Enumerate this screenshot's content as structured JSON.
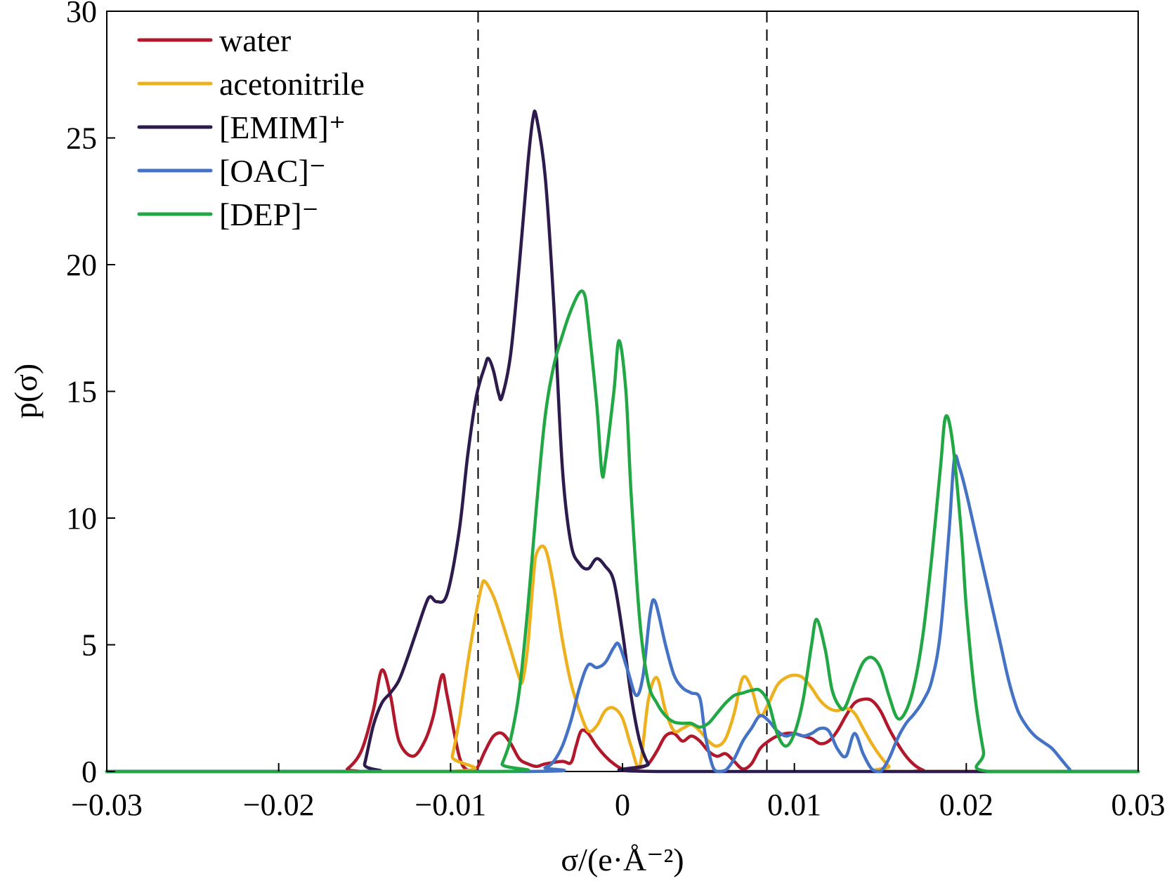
{
  "chart_data": {
    "type": "line",
    "title": "",
    "xlabel": "σ/(e·Å⁻²)",
    "ylabel": "p(σ)",
    "xlim": [
      -0.03,
      0.03
    ],
    "ylim": [
      0,
      30
    ],
    "x_ticks": [
      "−0.03",
      "−0.02",
      "−0.01",
      "0",
      "0.01",
      "0.02",
      "0.03"
    ],
    "y_ticks": [
      "0",
      "5",
      "10",
      "15",
      "20",
      "25",
      "30"
    ],
    "grid": false,
    "legend_position": "top-left",
    "reference_lines_x": [
      -0.0084,
      0.0084
    ],
    "series": [
      {
        "name": "water",
        "color": "#b2182b",
        "points": [
          [
            -0.03,
            0
          ],
          [
            -0.0165,
            0
          ],
          [
            -0.016,
            0.1
          ],
          [
            -0.0152,
            0.8
          ],
          [
            -0.0145,
            2.4
          ],
          [
            -0.014,
            4.0
          ],
          [
            -0.0135,
            3.0
          ],
          [
            -0.013,
            1.2
          ],
          [
            -0.0122,
            0.6
          ],
          [
            -0.0115,
            1.2
          ],
          [
            -0.011,
            2.2
          ],
          [
            -0.0105,
            3.8
          ],
          [
            -0.0102,
            3.0
          ],
          [
            -0.0095,
            0.6
          ],
          [
            -0.009,
            0.05
          ],
          [
            -0.0085,
            0.1
          ],
          [
            -0.008,
            0.8
          ],
          [
            -0.0075,
            1.4
          ],
          [
            -0.007,
            1.5
          ],
          [
            -0.0065,
            1.1
          ],
          [
            -0.006,
            0.5
          ],
          [
            -0.0055,
            0.3
          ],
          [
            -0.005,
            0.2
          ],
          [
            -0.0045,
            0.3
          ],
          [
            -0.0035,
            0.4
          ],
          [
            -0.003,
            0.35
          ],
          [
            -0.0027,
            1.0
          ],
          [
            -0.0024,
            1.6
          ],
          [
            -0.002,
            1.5
          ],
          [
            -0.0015,
            1.0
          ],
          [
            -0.001,
            0.6
          ],
          [
            -0.0005,
            0.3
          ],
          [
            0,
            0.1
          ],
          [
            0.0005,
            0.1
          ],
          [
            0.001,
            0.15
          ],
          [
            0.0015,
            0.3
          ],
          [
            0.002,
            0.8
          ],
          [
            0.0025,
            1.4
          ],
          [
            0.003,
            1.5
          ],
          [
            0.0035,
            1.2
          ],
          [
            0.004,
            1.4
          ],
          [
            0.0045,
            1.2
          ],
          [
            0.005,
            0.8
          ],
          [
            0.0055,
            0.6
          ],
          [
            0.006,
            0.7
          ],
          [
            0.0065,
            0.4
          ],
          [
            0.007,
            0.1
          ],
          [
            0.0075,
            0.3
          ],
          [
            0.008,
            0.9
          ],
          [
            0.0085,
            1.2
          ],
          [
            0.009,
            1.4
          ],
          [
            0.0095,
            1.5
          ],
          [
            0.01,
            1.5
          ],
          [
            0.0105,
            1.4
          ],
          [
            0.011,
            1.3
          ],
          [
            0.0115,
            1.1
          ],
          [
            0.012,
            1.2
          ],
          [
            0.0125,
            1.6
          ],
          [
            0.013,
            2.2
          ],
          [
            0.0135,
            2.7
          ],
          [
            0.014,
            2.85
          ],
          [
            0.0145,
            2.8
          ],
          [
            0.015,
            2.4
          ],
          [
            0.0155,
            1.7
          ],
          [
            0.016,
            1.1
          ],
          [
            0.0165,
            0.6
          ],
          [
            0.017,
            0.25
          ],
          [
            0.0175,
            0.05
          ],
          [
            0.018,
            0
          ],
          [
            0.03,
            0
          ]
        ]
      },
      {
        "name": "acetonitrile",
        "color": "#edb120",
        "points": [
          [
            -0.03,
            0
          ],
          [
            -0.0101,
            0
          ],
          [
            -0.0099,
            0.6
          ],
          [
            -0.0095,
            2.0
          ],
          [
            -0.009,
            4.3
          ],
          [
            -0.0085,
            6.3
          ],
          [
            -0.0082,
            7.3
          ],
          [
            -0.008,
            7.5
          ],
          [
            -0.0075,
            6.9
          ],
          [
            -0.007,
            5.9
          ],
          [
            -0.0065,
            4.8
          ],
          [
            -0.006,
            3.7
          ],
          [
            -0.0058,
            3.6
          ],
          [
            -0.0055,
            5.0
          ],
          [
            -0.0052,
            7.5
          ],
          [
            -0.005,
            8.6
          ],
          [
            -0.0045,
            8.8
          ],
          [
            -0.004,
            7.3
          ],
          [
            -0.0035,
            5.2
          ],
          [
            -0.003,
            3.5
          ],
          [
            -0.0025,
            2.4
          ],
          [
            -0.002,
            1.6
          ],
          [
            -0.0015,
            1.8
          ],
          [
            -0.001,
            2.4
          ],
          [
            -0.0005,
            2.5
          ],
          [
            0,
            2.1
          ],
          [
            0.0005,
            1.0
          ],
          [
            0.001,
            0.2
          ],
          [
            0.0015,
            2.8
          ],
          [
            0.002,
            3.7
          ],
          [
            0.0025,
            2.4
          ],
          [
            0.003,
            1.6
          ],
          [
            0.0035,
            1.7
          ],
          [
            0.004,
            1.85
          ],
          [
            0.0045,
            1.6
          ],
          [
            0.005,
            1.2
          ],
          [
            0.0055,
            1.0
          ],
          [
            0.006,
            1.3
          ],
          [
            0.0065,
            2.3
          ],
          [
            0.007,
            3.7
          ],
          [
            0.0075,
            3.3
          ],
          [
            0.008,
            2.2
          ],
          [
            0.0085,
            2.7
          ],
          [
            0.009,
            3.4
          ],
          [
            0.0095,
            3.7
          ],
          [
            0.01,
            3.8
          ],
          [
            0.0105,
            3.7
          ],
          [
            0.011,
            3.3
          ],
          [
            0.0115,
            2.8
          ],
          [
            0.012,
            2.5
          ],
          [
            0.0125,
            2.4
          ],
          [
            0.013,
            2.5
          ],
          [
            0.0135,
            2.3
          ],
          [
            0.014,
            1.7
          ],
          [
            0.0145,
            1.1
          ],
          [
            0.015,
            0.6
          ],
          [
            0.0155,
            0.2
          ],
          [
            0.0158,
            0
          ],
          [
            0.03,
            0
          ]
        ]
      },
      {
        "name": "[EMIM]⁺",
        "color": "#2d1b4e",
        "points": [
          [
            -0.03,
            0
          ],
          [
            -0.0152,
            0
          ],
          [
            -0.015,
            0.3
          ],
          [
            -0.0145,
            1.8
          ],
          [
            -0.014,
            2.7
          ],
          [
            -0.0135,
            3.1
          ],
          [
            -0.013,
            3.6
          ],
          [
            -0.0125,
            4.5
          ],
          [
            -0.012,
            5.5
          ],
          [
            -0.0115,
            6.5
          ],
          [
            -0.0112,
            6.9
          ],
          [
            -0.0108,
            6.7
          ],
          [
            -0.0102,
            7.0
          ],
          [
            -0.0095,
            9.5
          ],
          [
            -0.009,
            12.5
          ],
          [
            -0.0085,
            14.8
          ],
          [
            -0.008,
            16.0
          ],
          [
            -0.0078,
            16.3
          ],
          [
            -0.0075,
            15.8
          ],
          [
            -0.0072,
            14.9
          ],
          [
            -0.007,
            14.8
          ],
          [
            -0.0065,
            16.5
          ],
          [
            -0.006,
            20.0
          ],
          [
            -0.0055,
            24.0
          ],
          [
            -0.0052,
            25.8
          ],
          [
            -0.005,
            25.8
          ],
          [
            -0.0045,
            23.5
          ],
          [
            -0.004,
            18.5
          ],
          [
            -0.0035,
            12.0
          ],
          [
            -0.003,
            9.0
          ],
          [
            -0.0025,
            8.2
          ],
          [
            -0.002,
            8.0
          ],
          [
            -0.0015,
            8.4
          ],
          [
            -0.001,
            8.1
          ],
          [
            -0.0005,
            7.5
          ],
          [
            0,
            5.5
          ],
          [
            0.0005,
            3.0
          ],
          [
            0.001,
            1.2
          ],
          [
            0.0015,
            0.3
          ],
          [
            0.002,
            0
          ],
          [
            0.03,
            0
          ]
        ]
      },
      {
        "name": "[OAC]⁻",
        "color": "#4472c4",
        "points": [
          [
            -0.03,
            0
          ],
          [
            -0.0055,
            0
          ],
          [
            -0.0045,
            0.15
          ],
          [
            -0.004,
            0.4
          ],
          [
            -0.0035,
            1.0
          ],
          [
            -0.003,
            2.0
          ],
          [
            -0.0025,
            3.3
          ],
          [
            -0.002,
            4.2
          ],
          [
            -0.0015,
            4.1
          ],
          [
            -0.001,
            4.3
          ],
          [
            -0.0005,
            4.9
          ],
          [
            -0.0002,
            5.0
          ],
          [
            0.0003,
            4.0
          ],
          [
            0.0008,
            3.0
          ],
          [
            0.0012,
            3.8
          ],
          [
            0.0016,
            6.2
          ],
          [
            0.0019,
            6.7
          ],
          [
            0.0025,
            5.0
          ],
          [
            0.003,
            3.8
          ],
          [
            0.0035,
            3.3
          ],
          [
            0.004,
            3.1
          ],
          [
            0.0045,
            2.9
          ],
          [
            0.0048,
            1.5
          ],
          [
            0.0052,
            0.3
          ],
          [
            0.0055,
            0
          ],
          [
            0.006,
            0.05
          ],
          [
            0.0065,
            0.5
          ],
          [
            0.007,
            1.2
          ],
          [
            0.0075,
            1.7
          ],
          [
            0.008,
            2.2
          ],
          [
            0.0085,
            2.0
          ],
          [
            0.009,
            1.6
          ],
          [
            0.0095,
            1.4
          ],
          [
            0.01,
            1.5
          ],
          [
            0.0105,
            1.4
          ],
          [
            0.011,
            1.5
          ],
          [
            0.0115,
            1.7
          ],
          [
            0.012,
            1.6
          ],
          [
            0.0125,
            0.9
          ],
          [
            0.013,
            0.6
          ],
          [
            0.0135,
            1.5
          ],
          [
            0.014,
            0.7
          ],
          [
            0.0145,
            0.1
          ],
          [
            0.015,
            0
          ],
          [
            0.0155,
            0.5
          ],
          [
            0.016,
            1.3
          ],
          [
            0.0165,
            1.9
          ],
          [
            0.017,
            2.3
          ],
          [
            0.0175,
            2.8
          ],
          [
            0.018,
            3.6
          ],
          [
            0.0185,
            5.5
          ],
          [
            0.019,
            9.5
          ],
          [
            0.0193,
            12.3
          ],
          [
            0.0196,
            12.0
          ],
          [
            0.02,
            11.0
          ],
          [
            0.0205,
            9.5
          ],
          [
            0.021,
            8.0
          ],
          [
            0.0215,
            6.5
          ],
          [
            0.022,
            5.0
          ],
          [
            0.0225,
            3.5
          ],
          [
            0.023,
            2.4
          ],
          [
            0.0235,
            1.8
          ],
          [
            0.024,
            1.4
          ],
          [
            0.0245,
            1.15
          ],
          [
            0.025,
            0.9
          ],
          [
            0.0255,
            0.5
          ],
          [
            0.026,
            0.1
          ],
          [
            0.0263,
            0
          ],
          [
            0.03,
            0
          ]
        ]
      },
      {
        "name": "[DEP]⁻",
        "color": "#22a745",
        "points": [
          [
            -0.03,
            0
          ],
          [
            -0.0072,
            0
          ],
          [
            -0.007,
            0.3
          ],
          [
            -0.0065,
            1.3
          ],
          [
            -0.006,
            3.2
          ],
          [
            -0.0055,
            6.5
          ],
          [
            -0.005,
            10.5
          ],
          [
            -0.0045,
            14.0
          ],
          [
            -0.004,
            16.0
          ],
          [
            -0.0035,
            17.2
          ],
          [
            -0.003,
            18.2
          ],
          [
            -0.0025,
            18.9
          ],
          [
            -0.0022,
            18.8
          ],
          [
            -0.002,
            17.8
          ],
          [
            -0.0015,
            14.5
          ],
          [
            -0.0012,
            11.8
          ],
          [
            -0.001,
            12.2
          ],
          [
            -0.0005,
            15.0
          ],
          [
            -0.0002,
            17.0
          ],
          [
            0.0002,
            15.0
          ],
          [
            0.0005,
            11.0
          ],
          [
            0.001,
            6.0
          ],
          [
            0.0015,
            3.5
          ],
          [
            0.002,
            2.7
          ],
          [
            0.0025,
            2.2
          ],
          [
            0.003,
            1.95
          ],
          [
            0.0035,
            1.9
          ],
          [
            0.004,
            1.9
          ],
          [
            0.0045,
            1.75
          ],
          [
            0.005,
            1.9
          ],
          [
            0.0055,
            2.3
          ],
          [
            0.006,
            2.7
          ],
          [
            0.0065,
            3.0
          ],
          [
            0.007,
            3.1
          ],
          [
            0.0075,
            3.2
          ],
          [
            0.008,
            3.2
          ],
          [
            0.0085,
            2.7
          ],
          [
            0.009,
            1.5
          ],
          [
            0.0095,
            1.0
          ],
          [
            0.01,
            1.5
          ],
          [
            0.0105,
            2.8
          ],
          [
            0.011,
            5.0
          ],
          [
            0.0113,
            6.0
          ],
          [
            0.0118,
            4.8
          ],
          [
            0.0122,
            3.2
          ],
          [
            0.0127,
            2.5
          ],
          [
            0.013,
            2.6
          ],
          [
            0.0135,
            3.5
          ],
          [
            0.014,
            4.3
          ],
          [
            0.0145,
            4.5
          ],
          [
            0.015,
            4.1
          ],
          [
            0.0155,
            3.0
          ],
          [
            0.016,
            2.1
          ],
          [
            0.0165,
            2.4
          ],
          [
            0.017,
            3.5
          ],
          [
            0.0175,
            5.5
          ],
          [
            0.018,
            8.5
          ],
          [
            0.0185,
            12.0
          ],
          [
            0.0188,
            14.0
          ],
          [
            0.0192,
            13.0
          ],
          [
            0.0197,
            9.5
          ],
          [
            0.02,
            6.5
          ],
          [
            0.0205,
            3.0
          ],
          [
            0.021,
            0.8
          ],
          [
            0.0213,
            0
          ],
          [
            0.03,
            0
          ]
        ]
      }
    ]
  }
}
